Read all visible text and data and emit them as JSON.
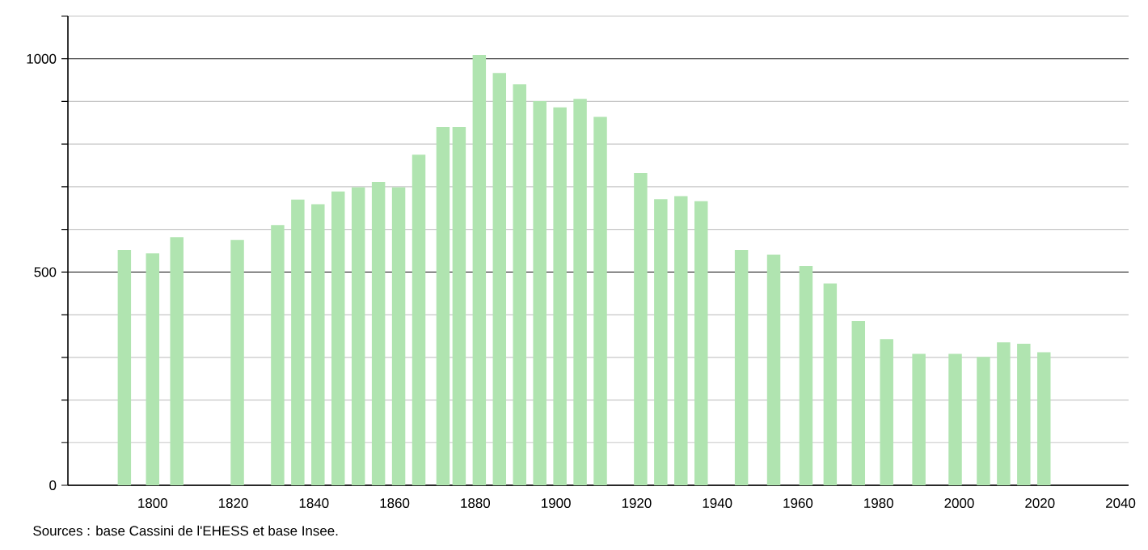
{
  "chart_data": {
    "type": "bar",
    "x": [
      1793,
      1800,
      1806,
      1821,
      1831,
      1836,
      1841,
      1846,
      1851,
      1856,
      1861,
      1866,
      1872,
      1876,
      1881,
      1886,
      1891,
      1896,
      1901,
      1906,
      1911,
      1921,
      1926,
      1931,
      1936,
      1946,
      1954,
      1962,
      1968,
      1975,
      1982,
      1990,
      1999,
      2006,
      2011,
      2016,
      2021
    ],
    "values": [
      552,
      544,
      582,
      575,
      610,
      670,
      659,
      689,
      699,
      711,
      699,
      775,
      840,
      840,
      1009,
      967,
      940,
      901,
      886,
      906,
      864,
      732,
      671,
      678,
      666,
      552,
      541,
      514,
      473,
      385,
      343,
      308,
      308,
      301,
      335,
      332,
      312
    ],
    "color": "#b0e4b0",
    "xlim": [
      1779,
      2042
    ],
    "xticks": [
      1800,
      1820,
      1840,
      1860,
      1880,
      1900,
      1920,
      1940,
      1960,
      1980,
      2000,
      2020,
      2040
    ],
    "ylim": [
      0,
      1100
    ],
    "yticks": [
      0,
      {
        "value": 100,
        "label": null
      },
      {
        "value": 200,
        "label": null
      },
      {
        "value": 300,
        "label": null
      },
      {
        "value": 400,
        "label": null
      },
      500,
      {
        "value": 600,
        "label": null
      },
      {
        "value": 700,
        "label": null
      },
      {
        "value": 800,
        "label": null
      },
      {
        "value": 900,
        "label": null
      },
      1000,
      {
        "value": 1100,
        "label": null
      }
    ],
    "grid": "y",
    "annotations": [
      "Sources : base Cassini de l'EHESS et base Insee."
    ]
  }
}
